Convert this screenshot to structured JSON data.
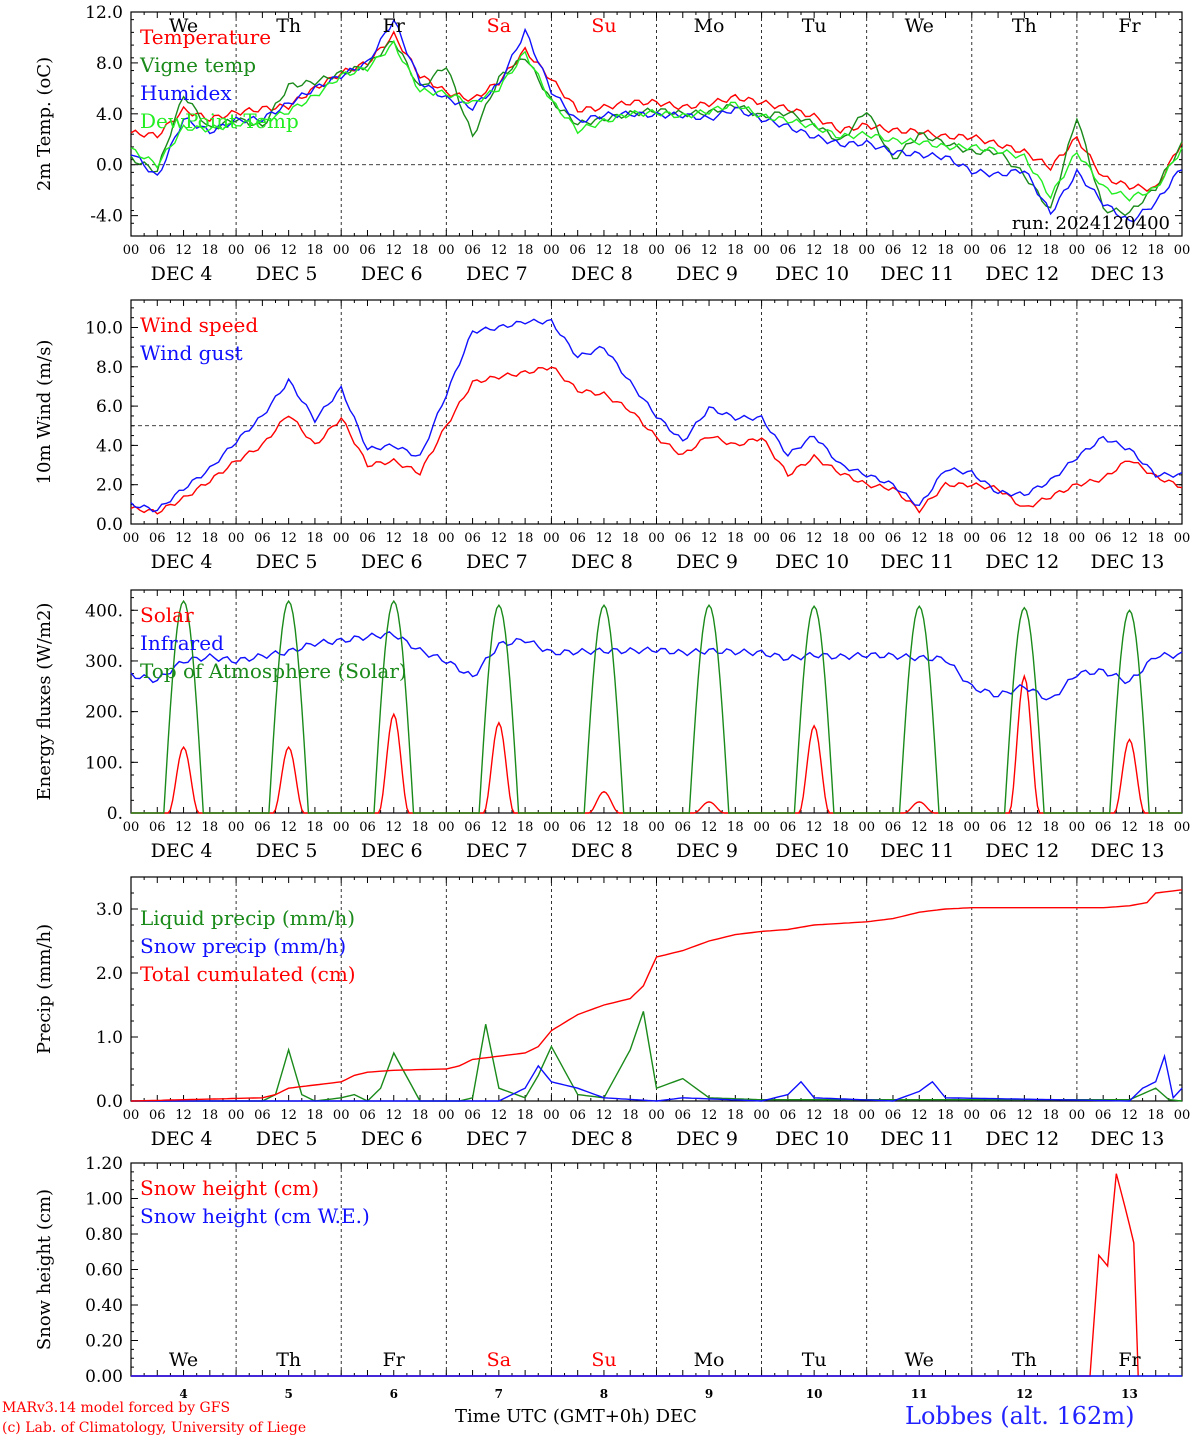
{
  "colors": {
    "red": "#ff0000",
    "green": "#1a8a1a",
    "blue": "#1010ff",
    "lime": "#22ee22",
    "weekend": "#ff0000",
    "station": "#2222ff"
  },
  "footer": {
    "credit_line1": "MARv3.14 model forced by GFS",
    "credit_line2": "(c) Lab. of Climatology, University of Liege",
    "xlabel": "Time UTC (GMT+0h) DEC",
    "station": "Lobbes (alt. 162m)"
  },
  "run_label": "run: 2024120400",
  "days": {
    "weekday_labels": [
      "We",
      "Th",
      "Fr",
      "Sa",
      "Su",
      "Mo",
      "Tu",
      "We",
      "Th",
      "Fr"
    ],
    "weekend_flags": [
      false,
      false,
      false,
      true,
      true,
      false,
      false,
      false,
      false,
      false
    ],
    "date_labels": [
      "DEC  4",
      "DEC  5",
      "DEC  6",
      "DEC  7",
      "DEC  8",
      "DEC  9",
      "DEC 10",
      "DEC 11",
      "DEC 12",
      "DEC 13"
    ],
    "day_numbers": [
      "4",
      "5",
      "6",
      "7",
      "8",
      "9",
      "10",
      "11",
      "12",
      "13"
    ],
    "hour_labels": [
      "00",
      "06",
      "12",
      "18"
    ],
    "final_hour_label": "00"
  },
  "chart_data": [
    {
      "type": "line",
      "ylabel": "2m Temp. (oC)",
      "ylim": [
        -5.6,
        12.0
      ],
      "yticks": [
        12.0,
        8.0,
        4.0,
        0.0,
        -4.0
      ],
      "ytick_labels": [
        "12.0",
        "8.0",
        "4.0",
        "0.0",
        "-4.0"
      ],
      "refline": 0.0,
      "x_hours_range": [
        0,
        240
      ],
      "series": [
        {
          "name": "Temperature",
          "color_key": "red",
          "x": [
            0,
            6,
            12,
            18,
            24,
            30,
            36,
            42,
            48,
            54,
            60,
            66,
            72,
            78,
            84,
            90,
            96,
            102,
            108,
            114,
            120,
            126,
            132,
            138,
            144,
            150,
            156,
            162,
            168,
            174,
            180,
            186,
            192,
            198,
            204,
            210,
            216,
            222,
            228,
            234,
            240
          ],
          "y": [
            2.5,
            2.3,
            4.3,
            3.6,
            4.1,
            4.4,
            4.6,
            6.0,
            7.2,
            8.0,
            10.2,
            7.0,
            5.7,
            5.1,
            6.5,
            9.0,
            6.7,
            4.3,
            4.5,
            4.9,
            4.9,
            4.5,
            4.8,
            5.3,
            4.9,
            4.4,
            3.8,
            2.7,
            3.1,
            2.7,
            2.6,
            2.2,
            2.2,
            1.6,
            1.0,
            -0.2,
            2.1,
            -1.0,
            -1.7,
            -1.9,
            1.8
          ]
        },
        {
          "name": "Vigne temp",
          "color_key": "green",
          "x": [
            0,
            6,
            12,
            18,
            24,
            30,
            36,
            42,
            48,
            54,
            60,
            66,
            72,
            78,
            84,
            90,
            96,
            102,
            108,
            114,
            120,
            126,
            132,
            138,
            144,
            150,
            156,
            162,
            168,
            174,
            180,
            186,
            192,
            198,
            204,
            210,
            216,
            222,
            228,
            234,
            240
          ],
          "y": [
            0.5,
            -0.5,
            5.5,
            2.8,
            3.6,
            3.0,
            6.2,
            6.5,
            7.2,
            7.8,
            9.8,
            6.0,
            7.8,
            2.2,
            6.8,
            8.5,
            5.0,
            3.2,
            3.6,
            4.0,
            4.3,
            4.0,
            4.1,
            4.7,
            3.8,
            4.1,
            3.2,
            1.8,
            4.3,
            0.4,
            2.4,
            1.7,
            1.0,
            1.0,
            -0.8,
            -3.6,
            3.8,
            -3.5,
            -3.8,
            -1.8,
            1.6
          ]
        },
        {
          "name": "Humidex",
          "color_key": "blue",
          "x": [
            0,
            6,
            12,
            18,
            24,
            30,
            36,
            42,
            48,
            54,
            60,
            66,
            72,
            78,
            84,
            90,
            96,
            102,
            108,
            114,
            120,
            126,
            132,
            138,
            144,
            150,
            156,
            162,
            168,
            174,
            180,
            186,
            192,
            198,
            204,
            210,
            216,
            222,
            228,
            234,
            240
          ],
          "y": [
            1.0,
            -1.0,
            3.6,
            2.6,
            3.5,
            3.6,
            4.8,
            6.0,
            7.0,
            8.0,
            11.4,
            6.5,
            5.2,
            4.5,
            6.3,
            10.5,
            5.8,
            3.4,
            3.9,
            4.0,
            3.9,
            3.9,
            3.6,
            4.4,
            3.6,
            3.0,
            2.2,
            1.6,
            1.7,
            1.0,
            0.8,
            0.6,
            -0.5,
            -0.8,
            -0.4,
            -3.8,
            -0.6,
            -3.0,
            -4.5,
            -3.0,
            -0.2
          ]
        },
        {
          "name": "DewPoint Temp",
          "color_key": "lime",
          "x": [
            0,
            6,
            12,
            18,
            24,
            30,
            36,
            42,
            48,
            54,
            60,
            66,
            72,
            78,
            84,
            90,
            96,
            102,
            108,
            114,
            120,
            126,
            132,
            138,
            144,
            150,
            156,
            162,
            168,
            174,
            180,
            186,
            192,
            198,
            204,
            210,
            216,
            222,
            228,
            234,
            240
          ],
          "y": [
            1.2,
            0.0,
            2.9,
            2.8,
            3.2,
            3.4,
            4.2,
            5.4,
            7.0,
            7.6,
            9.5,
            5.8,
            5.6,
            4.8,
            6.0,
            8.8,
            5.0,
            2.7,
            3.4,
            4.0,
            4.1,
            3.8,
            4.2,
            4.8,
            3.8,
            3.5,
            3.0,
            2.2,
            2.4,
            1.9,
            1.8,
            1.4,
            1.4,
            1.1,
            0.6,
            -2.5,
            1.0,
            -1.8,
            -2.6,
            -1.9,
            1.3
          ]
        }
      ]
    },
    {
      "type": "line",
      "ylabel": "10m Wind (m/s)",
      "ylim": [
        0,
        11.4
      ],
      "yticks": [
        0.0,
        2.0,
        4.0,
        6.0,
        8.0,
        10.0
      ],
      "ytick_labels": [
        "0.0",
        "2.0",
        "4.0",
        "6.0",
        "8.0",
        "10.0"
      ],
      "refline": 5.0,
      "x_hours_range": [
        0,
        240
      ],
      "series": [
        {
          "name": "Wind speed",
          "color_key": "red",
          "x": [
            0,
            6,
            12,
            18,
            24,
            30,
            36,
            42,
            48,
            54,
            60,
            66,
            72,
            78,
            84,
            90,
            96,
            102,
            108,
            114,
            120,
            126,
            132,
            138,
            144,
            150,
            156,
            162,
            168,
            174,
            180,
            186,
            192,
            198,
            204,
            210,
            216,
            222,
            228,
            234,
            240
          ],
          "y": [
            0.8,
            0.6,
            1.3,
            2.2,
            3.2,
            4.0,
            5.6,
            4.0,
            5.4,
            3.0,
            3.2,
            2.6,
            5.0,
            7.2,
            7.5,
            7.7,
            8.0,
            6.8,
            6.6,
            5.8,
            4.4,
            3.5,
            4.5,
            4.0,
            4.4,
            2.5,
            3.4,
            2.6,
            2.0,
            1.8,
            0.7,
            2.0,
            2.0,
            1.8,
            0.8,
            1.4,
            2.0,
            2.3,
            3.3,
            2.4,
            1.9
          ]
        },
        {
          "name": "Wind gust",
          "color_key": "blue",
          "x": [
            0,
            6,
            12,
            18,
            24,
            30,
            36,
            42,
            48,
            54,
            60,
            66,
            72,
            78,
            84,
            90,
            96,
            102,
            108,
            114,
            120,
            126,
            132,
            138,
            144,
            150,
            156,
            162,
            168,
            174,
            180,
            186,
            192,
            198,
            204,
            210,
            216,
            222,
            228,
            234,
            240
          ],
          "y": [
            1.0,
            0.7,
            1.8,
            2.8,
            4.2,
            5.5,
            7.3,
            5.3,
            6.9,
            3.8,
            4.0,
            3.4,
            6.6,
            9.8,
            10.0,
            10.3,
            10.3,
            8.5,
            9.0,
            7.2,
            5.5,
            4.2,
            5.9,
            5.4,
            5.4,
            3.5,
            4.5,
            3.0,
            2.5,
            2.0,
            0.9,
            2.8,
            2.6,
            1.6,
            1.5,
            2.2,
            3.4,
            4.4,
            3.8,
            2.5,
            2.5
          ]
        }
      ]
    },
    {
      "type": "line",
      "ylabel": "Energy fluxes (W/m2)",
      "ylim": [
        0,
        440
      ],
      "yticks": [
        0,
        100,
        200,
        300,
        400
      ],
      "ytick_labels": [
        "0.",
        "100.",
        "200.",
        "300.",
        "400."
      ],
      "x_hours_range": [
        0,
        240
      ],
      "series": [
        {
          "name": "Solar",
          "color_key": "red",
          "peaks": [
            130,
            130,
            195,
            178,
            42,
            22,
            172,
            22,
            270,
            145
          ]
        },
        {
          "name": "Infrared",
          "color_key": "blue",
          "x": [
            0,
            6,
            12,
            18,
            24,
            30,
            36,
            42,
            48,
            54,
            60,
            66,
            72,
            78,
            84,
            90,
            96,
            102,
            108,
            114,
            120,
            126,
            132,
            138,
            144,
            150,
            156,
            162,
            168,
            174,
            180,
            186,
            192,
            198,
            204,
            210,
            216,
            222,
            228,
            234,
            240
          ],
          "y": [
            272,
            262,
            300,
            308,
            300,
            310,
            318,
            335,
            340,
            348,
            353,
            320,
            300,
            268,
            332,
            342,
            316,
            318,
            320,
            320,
            322,
            316,
            320,
            318,
            316,
            305,
            312,
            308,
            312,
            310,
            306,
            304,
            248,
            232,
            250,
            222,
            275,
            280,
            258,
            310,
            312
          ]
        },
        {
          "name": "Top of Atmosphere (Solar)",
          "color_key": "green",
          "peaks": [
            418,
            418,
            418,
            410,
            410,
            410,
            408,
            408,
            405,
            400
          ]
        }
      ]
    },
    {
      "type": "line",
      "ylabel": "Precip (mm/h)",
      "ylim": [
        0,
        3.5
      ],
      "yticks": [
        0.0,
        1.0,
        2.0,
        3.0
      ],
      "ytick_labels": [
        "0.0",
        "1.0",
        "2.0",
        "3.0"
      ],
      "x_hours_range": [
        0,
        240
      ],
      "series": [
        {
          "name": "Liquid precip (mm/h)",
          "color_key": "green",
          "x": [
            0,
            30,
            33,
            36,
            39,
            42,
            48,
            51,
            54,
            57,
            60,
            66,
            72,
            75,
            78,
            81,
            84,
            90,
            93,
            96,
            102,
            108,
            114,
            117,
            120,
            126,
            132,
            144,
            168,
            216,
            228,
            234,
            237,
            240
          ],
          "y": [
            0,
            0,
            0.1,
            0.8,
            0.1,
            0,
            0.05,
            0.1,
            0,
            0.2,
            0.75,
            0,
            0,
            0,
            0.05,
            1.2,
            0.2,
            0.05,
            0.4,
            0.85,
            0.1,
            0.05,
            0.8,
            1.4,
            0.2,
            0.35,
            0.05,
            0.02,
            0.02,
            0.02,
            0.02,
            0.2,
            0.02,
            0
          ]
        },
        {
          "name": "Snow precip (mm/h)",
          "color_key": "blue",
          "x": [
            0,
            84,
            90,
            93,
            96,
            102,
            108,
            120,
            126,
            144,
            150,
            153,
            156,
            174,
            180,
            183,
            186,
            228,
            231,
            234,
            236,
            238,
            240
          ],
          "y": [
            0,
            0,
            0.2,
            0.55,
            0.3,
            0.2,
            0.05,
            0,
            0.05,
            0,
            0.1,
            0.3,
            0.05,
            0,
            0.15,
            0.3,
            0.05,
            0,
            0.2,
            0.3,
            0.7,
            0.05,
            0.2
          ]
        },
        {
          "name": "Total cumulated (cm)",
          "color_key": "red",
          "x": [
            0,
            30,
            33,
            36,
            42,
            48,
            51,
            54,
            60,
            72,
            75,
            78,
            84,
            90,
            93,
            96,
            102,
            108,
            114,
            117,
            120,
            126,
            132,
            138,
            144,
            150,
            156,
            168,
            174,
            180,
            186,
            192,
            198,
            210,
            216,
            222,
            228,
            232,
            234,
            240
          ],
          "y": [
            0,
            0.05,
            0.1,
            0.2,
            0.25,
            0.3,
            0.4,
            0.45,
            0.48,
            0.5,
            0.55,
            0.65,
            0.7,
            0.75,
            0.85,
            1.1,
            1.35,
            1.5,
            1.6,
            1.8,
            2.25,
            2.35,
            2.5,
            2.6,
            2.65,
            2.68,
            2.75,
            2.8,
            2.85,
            2.95,
            3.0,
            3.02,
            3.02,
            3.02,
            3.02,
            3.02,
            3.05,
            3.1,
            3.25,
            3.3
          ]
        }
      ]
    },
    {
      "type": "line",
      "ylabel": "Snow height (cm)",
      "ylim": [
        0,
        1.2
      ],
      "yticks": [
        0.0,
        0.2,
        0.4,
        0.6,
        0.8,
        1.0,
        1.2
      ],
      "ytick_labels": [
        "0.00",
        "0.20",
        "0.40",
        "0.60",
        "0.80",
        "1.00",
        "1.20"
      ],
      "x_hours_range": [
        0,
        240
      ],
      "series": [
        {
          "name": "Snow height (cm)",
          "color_key": "red",
          "x": [
            0,
            219,
            221,
            223,
            225,
            227,
            229,
            230
          ],
          "y": [
            0,
            0,
            0.68,
            0.62,
            1.14,
            0.95,
            0.75,
            0
          ]
        },
        {
          "name": "Snow height (cm W.E.)",
          "color_key": "blue",
          "x": [
            0,
            240
          ],
          "y": [
            0,
            0
          ]
        }
      ]
    }
  ]
}
